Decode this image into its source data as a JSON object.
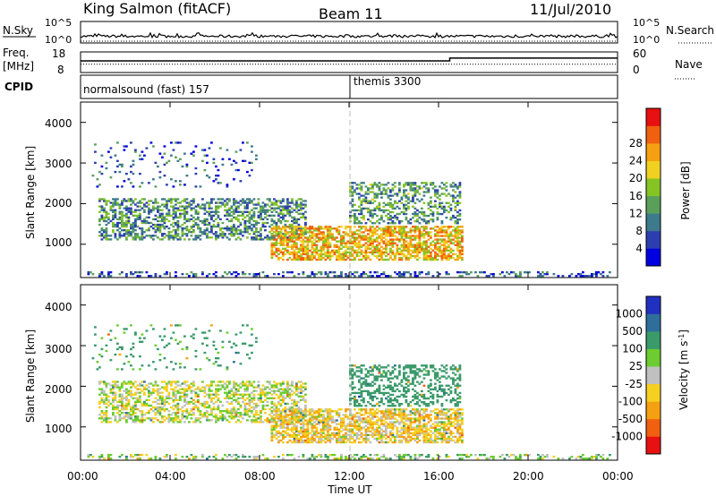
{
  "header": {
    "station": "King Salmon (fitACF)",
    "beam": "Beam 11",
    "date": "11/Jul/2010"
  },
  "noise_panel": {
    "left_label": "N.Sky",
    "right_label": "N.Search",
    "tick_top": "10^5",
    "tick_bottom": "10^0"
  },
  "freq_panel": {
    "left_label_1": "Freq.",
    "left_label_2": "[MHz]",
    "left_tick_top": "18",
    "left_tick_bottom": "8",
    "right_label": "Nave",
    "right_tick_top": "60",
    "right_tick_bottom": "0"
  },
  "cpid_panel": {
    "label": "CPID",
    "programs": [
      {
        "name": "normalsound (fast) 157",
        "start_hour": 0
      },
      {
        "name": "themis 3300",
        "start_hour": 12
      }
    ]
  },
  "power_panel": {
    "ylabel": "Slant Range [km]",
    "yticks": [
      "1000",
      "2000",
      "3000",
      "4000"
    ],
    "colorbar_label": "Power [dB]",
    "colorbar_ticks": [
      "4",
      "8",
      "12",
      "16",
      "20",
      "24",
      "28"
    ],
    "colors": [
      "#0000e0",
      "#2d3fb0",
      "#3d7a8c",
      "#5aa05a",
      "#86c426",
      "#f0d020",
      "#f5a010",
      "#f06010",
      "#e81010"
    ]
  },
  "velocity_panel": {
    "ylabel": "Slant Range [km]",
    "yticks": [
      "1000",
      "2000",
      "3000",
      "4000"
    ],
    "colorbar_label": "Velocity [m s^-1]",
    "colorbar_ticks": [
      "1000",
      "500",
      "100",
      "25",
      "-25",
      "-100",
      "-500",
      "-1000"
    ],
    "colors": [
      "#2030c0",
      "#2e6e9a",
      "#3a9a6a",
      "#6ccc30",
      "#c0c0c0",
      "#f5d020",
      "#f5a010",
      "#f06010",
      "#e81010"
    ]
  },
  "x_axis": {
    "ticks": [
      "00:00",
      "04:00",
      "08:00",
      "12:00",
      "16:00",
      "20:00",
      "00:00"
    ],
    "label": "Time UT"
  },
  "chart_data": {
    "type": "heatmap",
    "title": "King Salmon (fitACF)",
    "subtitle": "Beam 11",
    "date": "11/Jul/2010",
    "xlabel": "Time UT",
    "x_range_hours": [
      0,
      24
    ],
    "ylabel": "Slant Range [km]",
    "y_range_km": [
      180,
      4500
    ],
    "power_range_db": [
      0,
      30
    ],
    "velocity_range_ms": [
      -1000,
      1000
    ],
    "frequency_mhz": {
      "range": [
        8,
        18
      ],
      "approx_value": 12
    },
    "nave": {
      "range": [
        0,
        60
      ],
      "steps": [
        {
          "from_hour": 0,
          "to_hour": 16.5,
          "value": 34
        },
        {
          "from_hour": 16.5,
          "to_hour": 24,
          "value": 42
        }
      ]
    },
    "scatter_regions": [
      {
        "name": "E-region / near-range",
        "t0": 0.2,
        "t1": 23.8,
        "r0": 200,
        "r1": 320,
        "density": 0.35,
        "power": 6,
        "velocity": 40
      },
      {
        "name": "Main F-region band",
        "t0": 0.8,
        "t1": 10.0,
        "r0": 1100,
        "r1": 2100,
        "density": 0.5,
        "power": 10,
        "velocity": 5
      },
      {
        "name": "Midday 1000 km band",
        "t0": 8.5,
        "t1": 17.0,
        "r0": 600,
        "r1": 1450,
        "density": 0.65,
        "power": 20,
        "velocity": -60
      },
      {
        "name": "Afternoon 2000 km patches",
        "t0": 12.0,
        "t1": 17.0,
        "r0": 1500,
        "r1": 2500,
        "density": 0.4,
        "power": 11,
        "velocity": 250
      },
      {
        "name": "Sparse far range",
        "t0": 0.5,
        "t1": 8.0,
        "r0": 2400,
        "r1": 3500,
        "density": 0.08,
        "power": 6,
        "velocity": 150
      }
    ]
  }
}
